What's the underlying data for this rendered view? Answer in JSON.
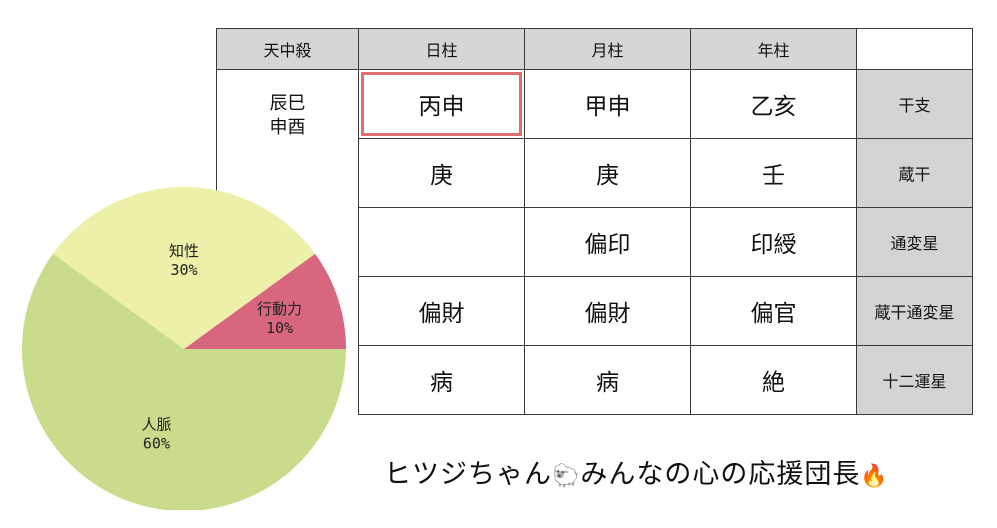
{
  "table": {
    "headers": [
      "天中殺",
      "日柱",
      "月柱",
      "年柱",
      ""
    ],
    "tenchusatsu": [
      "辰巳",
      "申酉"
    ],
    "rows": [
      {
        "label": "干支",
        "day": "丙申",
        "month": "甲申",
        "year": "乙亥"
      },
      {
        "label": "蔵干",
        "day": "庚",
        "month": "庚",
        "year": "壬"
      },
      {
        "label": "通変星",
        "day": "",
        "month": "偏印",
        "year": "印綬"
      },
      {
        "label": "蔵干通変星",
        "day": "偏財",
        "month": "偏財",
        "year": "偏官"
      },
      {
        "label": "十二運星",
        "day": "病",
        "month": "病",
        "year": "絶"
      }
    ]
  },
  "chart_data": {
    "type": "pie",
    "slices": [
      {
        "name": "行動力",
        "value": 10,
        "label": "10%",
        "color": "#d9667f"
      },
      {
        "name": "知性",
        "value": 30,
        "label": "30%",
        "color": "#ecf0a8"
      },
      {
        "name": "人脈",
        "value": 60,
        "label": "60%",
        "color": "#c8dc8c"
      }
    ],
    "title": ""
  },
  "caption": {
    "text1": "ヒツジちゃん",
    "sheep": "🐑",
    "text2": "みんなの心の応援団長",
    "fire": "🔥"
  }
}
